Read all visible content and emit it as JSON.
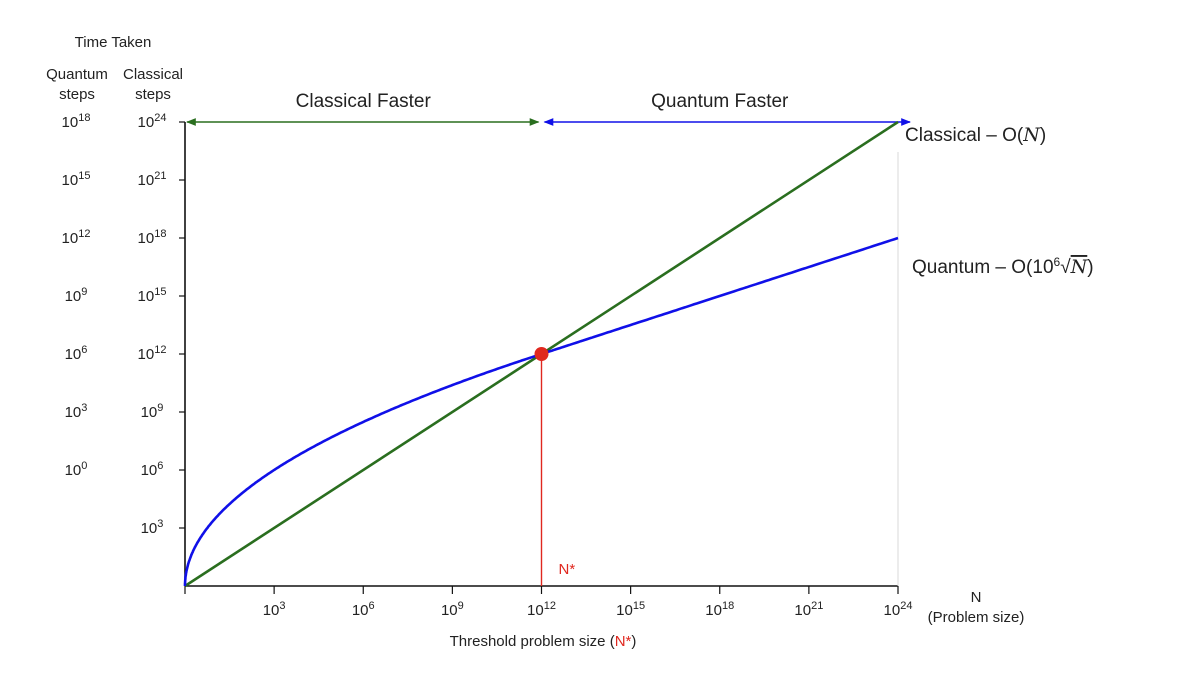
{
  "chart_data": {
    "type": "line",
    "title": "",
    "y_title": "Time Taken",
    "y_columns": [
      {
        "name": "Quantum steps",
        "header_lines": [
          "Quantum",
          "steps"
        ],
        "ticks": [
          {
            "v": 18,
            "label": "10",
            "sup": "18"
          },
          {
            "v": 15,
            "label": "10",
            "sup": "15"
          },
          {
            "v": 12,
            "label": "10",
            "sup": "12"
          },
          {
            "v": 9,
            "label": "10",
            "sup": "9"
          },
          {
            "v": 6,
            "label": "10",
            "sup": "6"
          },
          {
            "v": 3,
            "label": "10",
            "sup": "3"
          },
          {
            "v": 0,
            "label": "10",
            "sup": "0"
          }
        ]
      },
      {
        "name": "Classical steps",
        "header_lines": [
          "Classical",
          "steps"
        ],
        "ticks": [
          {
            "v": 24,
            "label": "10",
            "sup": "24"
          },
          {
            "v": 21,
            "label": "10",
            "sup": "21"
          },
          {
            "v": 18,
            "label": "10",
            "sup": "18"
          },
          {
            "v": 15,
            "label": "10",
            "sup": "15"
          },
          {
            "v": 12,
            "label": "10",
            "sup": "12"
          },
          {
            "v": 9,
            "label": "10",
            "sup": "9"
          },
          {
            "v": 6,
            "label": "10",
            "sup": "6"
          },
          {
            "v": 3,
            "label": "10",
            "sup": "3"
          }
        ]
      }
    ],
    "x_axis": {
      "label_lines": [
        "N",
        "(Problem size)"
      ],
      "range_log10": [
        0,
        24
      ],
      "ticks": [
        {
          "v": 3,
          "label": "10",
          "sup": "3"
        },
        {
          "v": 6,
          "label": "10",
          "sup": "6"
        },
        {
          "v": 9,
          "label": "10",
          "sup": "9"
        },
        {
          "v": 12,
          "label": "10",
          "sup": "12"
        },
        {
          "v": 15,
          "label": "10",
          "sup": "15"
        },
        {
          "v": 18,
          "label": "10",
          "sup": "18"
        },
        {
          "v": 21,
          "label": "10",
          "sup": "21"
        },
        {
          "v": 24,
          "label": "10",
          "sup": "24"
        }
      ]
    },
    "y_range_log10_classical": [
      0,
      24
    ],
    "series": [
      {
        "name": "Classical",
        "label_text": "Classical – O(",
        "label_var": "N",
        "label_close": ")",
        "color": "#2a6e1f",
        "scaling": "linear",
        "coefficient": 1
      },
      {
        "name": "Quantum",
        "label_text": "Quantum – O(10",
        "label_sup": "6",
        "label_var": "N",
        "label_close": ")",
        "color": "#1010e8",
        "scaling": "sqrt",
        "coefficient": 1000000
      }
    ],
    "crossover": {
      "x_log10": 12,
      "y_log10": 12,
      "marker_label": "N*",
      "color": "#e0281f"
    },
    "regions": [
      {
        "label": "Classical Faster",
        "from_log10": 0,
        "to_log10": 12,
        "color": "#2a6e1f"
      },
      {
        "label": "Quantum Faster",
        "from_log10": 12,
        "to_log10": 24,
        "color": "#1010e8"
      }
    ],
    "threshold_label": {
      "text": "Threshold problem size (",
      "highlight": "N*",
      "close": ")"
    },
    "grid": false,
    "legend": "none"
  }
}
